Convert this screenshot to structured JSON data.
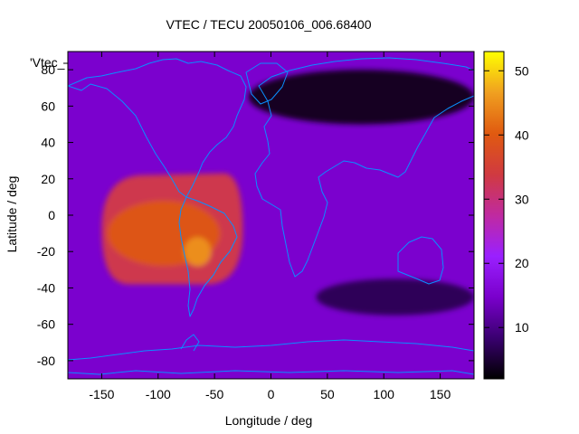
{
  "chart_data": {
    "type": "heatmap",
    "title": "VTEC / TECU 20050106_006.68400",
    "xlabel": "Longitude / deg",
    "ylabel": "Latitude / deg",
    "legend_label": "'Vtec_",
    "xlim": [
      -180,
      180
    ],
    "ylim": [
      -90,
      90
    ],
    "x_ticks": [
      -150,
      -100,
      -50,
      0,
      50,
      100,
      150
    ],
    "y_ticks": [
      -80,
      -60,
      -40,
      -20,
      0,
      20,
      40,
      60,
      80
    ],
    "x_tick_labels": [
      "-150",
      "-100",
      "-50",
      "0",
      "50",
      "100",
      "150"
    ],
    "y_tick_labels": [
      "-80",
      "-60",
      "-40",
      "-20",
      "0",
      "20",
      "40",
      "60",
      "80"
    ],
    "colorbar": {
      "range": [
        2,
        53
      ],
      "ticks": [
        10,
        20,
        30,
        40,
        50
      ],
      "tick_labels": [
        "10",
        "20",
        "30",
        "40",
        "50"
      ],
      "palette": [
        "#000000",
        "#3a0070",
        "#7a00cc",
        "#9a20ff",
        "#c02aa0",
        "#d03a40",
        "#e05a10",
        "#f0a020",
        "#ffff00"
      ]
    },
    "colors": {
      "coastline": "#0a8fff"
    },
    "grid": false,
    "peak": {
      "lon": -65,
      "lat": -20,
      "value": 45
    },
    "anomaly_plateau": {
      "lon_range": [
        -150,
        -25
      ],
      "lat_range": [
        -38,
        22
      ],
      "value": 33
    },
    "trough": {
      "lon_range": [
        -20,
        180
      ],
      "lat_range": [
        50,
        80
      ],
      "value": 4
    },
    "background_value": 15
  }
}
